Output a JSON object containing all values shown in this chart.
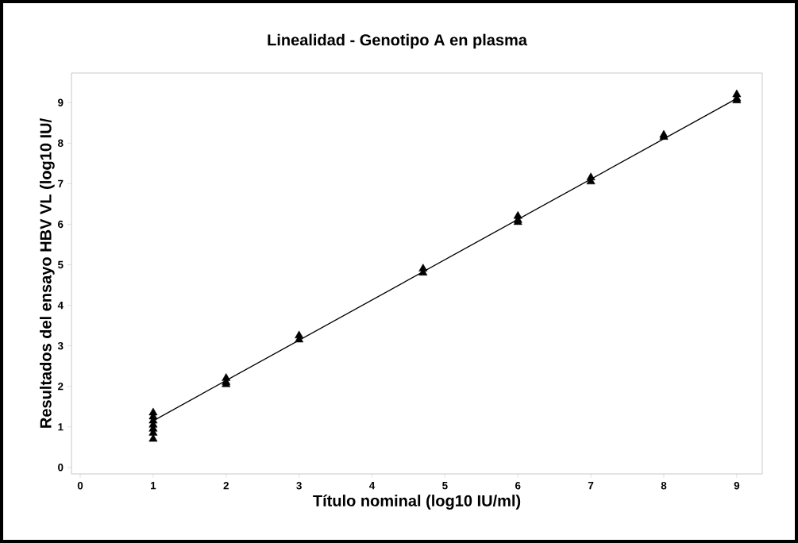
{
  "chart_data": {
    "type": "scatter",
    "title": "Linealidad - Genotipo A en plasma",
    "xlabel": "Título nominal (log10 IU/ml)",
    "ylabel": "Resultados del ensayo HBV VL (log10 IU/",
    "xlim": [
      -0.12,
      9.35
    ],
    "ylim": [
      -0.16,
      9.73
    ],
    "xticks": [
      0,
      1,
      2,
      3,
      4,
      5,
      6,
      7,
      8,
      9
    ],
    "yticks": [
      0,
      1,
      2,
      3,
      4,
      5,
      6,
      7,
      8,
      9
    ],
    "marker": "triangle",
    "series": [
      {
        "color": "#000000",
        "x": [
          1,
          1,
          1,
          1,
          1,
          1,
          1,
          2,
          2,
          2,
          3,
          3,
          4.7,
          4.7,
          6,
          6,
          6,
          7,
          7,
          8,
          8,
          9,
          9,
          9
        ],
        "values": [
          0.7,
          0.85,
          0.95,
          1.05,
          1.15,
          1.25,
          1.35,
          2.05,
          2.1,
          2.2,
          3.15,
          3.25,
          4.8,
          4.9,
          6.05,
          6.1,
          6.2,
          7.05,
          7.15,
          8.15,
          8.2,
          9.05,
          9.1,
          9.2
        ]
      },
      {
        "type": "line",
        "color": "#000000",
        "marker": "none",
        "line_style": "solid",
        "x": [
          1,
          9
        ],
        "values": [
          1.15,
          9.1
        ]
      }
    ]
  }
}
